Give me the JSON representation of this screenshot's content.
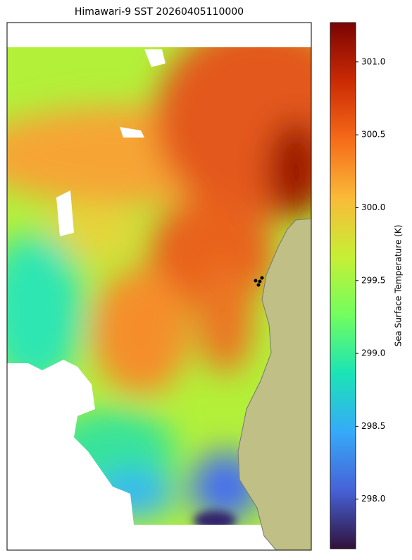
{
  "chart_data": {
    "type": "map",
    "title": "Himawari-9 SST 20260405110000",
    "colorbar": {
      "label": "Sea Surface Temperature (K)",
      "lim": [
        297.66,
        301.27
      ],
      "ticks": [
        {
          "value": 298,
          "label": "298.0"
        },
        {
          "value": 298.5,
          "label": "298.5"
        },
        {
          "value": 299,
          "label": "299.0"
        },
        {
          "value": 299.5,
          "label": "299.5"
        },
        {
          "value": 300,
          "label": "300.0"
        },
        {
          "value": 300.5,
          "label": "300.5"
        },
        {
          "value": 301,
          "label": "301.0"
        }
      ],
      "colormap": [
        "#30123b",
        "#4662d7",
        "#36aaf9",
        "#1ae4b6",
        "#72fe5e",
        "#c7ef34",
        "#faba39",
        "#f66b19",
        "#cb2a04",
        "#7a0403"
      ]
    }
  }
}
